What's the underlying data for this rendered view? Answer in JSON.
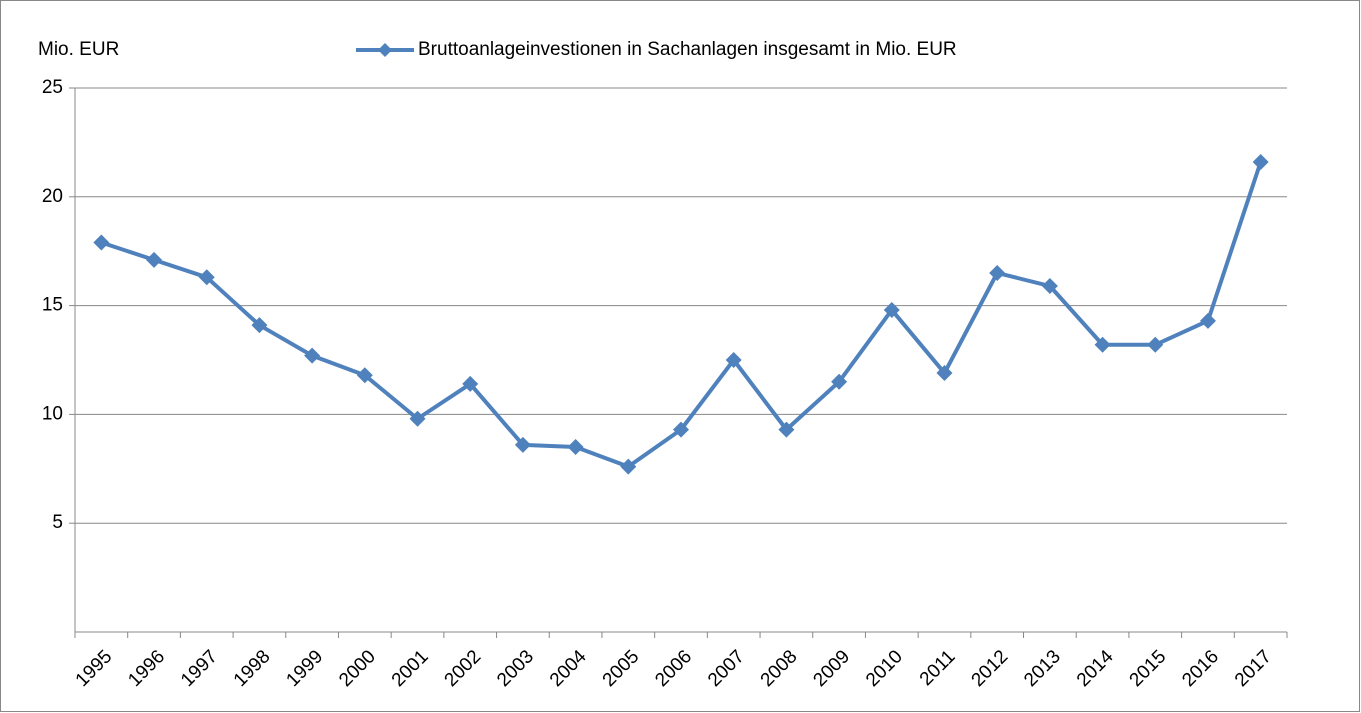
{
  "chart_data": {
    "type": "line",
    "y_axis_label": "Mio. EUR",
    "categories": [
      "1995",
      "1996",
      "1997",
      "1998",
      "1999",
      "2000",
      "2001",
      "2002",
      "2003",
      "2004",
      "2005",
      "2006",
      "2007",
      "2008",
      "2009",
      "2010",
      "2011",
      "2012",
      "2013",
      "2014",
      "2015",
      "2016",
      "2017"
    ],
    "series": [
      {
        "name": "Bruttoanlageinvestionen in Sachanlagen insgesamt in Mio. EUR",
        "color": "#4f81bd",
        "values": [
          17.9,
          17.1,
          16.3,
          14.1,
          12.7,
          11.8,
          9.8,
          11.4,
          8.6,
          8.5,
          7.6,
          9.3,
          12.5,
          9.3,
          11.5,
          14.8,
          11.9,
          16.5,
          15.9,
          13.2,
          13.2,
          14.3,
          21.6
        ]
      }
    ],
    "ylim": [
      0,
      25
    ],
    "yticks": [
      5,
      10,
      15,
      20,
      25
    ],
    "grid": true,
    "legend": "top"
  }
}
